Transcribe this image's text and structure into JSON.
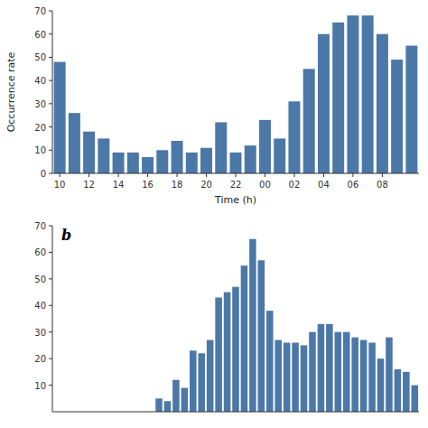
{
  "chart_data": [
    {
      "type": "bar",
      "xlabel": "Time (h)",
      "ylabel": "Occurrence rate",
      "categories": [
        "10",
        null,
        "12",
        null,
        "14",
        null,
        "16",
        null,
        "18",
        null,
        "20",
        null,
        "22",
        null,
        "00",
        null,
        "02",
        null,
        "04",
        null,
        "06",
        null,
        "08",
        null,
        null
      ],
      "values": [
        48,
        26,
        18,
        15,
        9,
        9,
        7,
        10,
        14,
        9,
        11,
        22,
        9,
        12,
        23,
        15,
        31,
        45,
        60,
        65,
        68,
        68,
        60,
        49,
        55
      ],
      "color": "#4c78a8",
      "ylim": [
        0,
        70
      ],
      "yticks": [
        0,
        10,
        20,
        30,
        40,
        50,
        60,
        70
      ]
    },
    {
      "type": "bar",
      "annotation": "b",
      "values": [
        0,
        0,
        0,
        0,
        0,
        0,
        0,
        0,
        0,
        0,
        0,
        0,
        5,
        4,
        12,
        9,
        23,
        22,
        27,
        43,
        45,
        47,
        55,
        65,
        57,
        38,
        27,
        26,
        26,
        25,
        30,
        33,
        33,
        30,
        30,
        28,
        27,
        26,
        20,
        28,
        16,
        15,
        10
      ],
      "color": "#4c78a8",
      "ylim": [
        0,
        70
      ],
      "yticks": [
        10,
        20,
        30,
        40,
        50,
        60,
        70
      ],
      "tick_labels": "y"
    }
  ]
}
